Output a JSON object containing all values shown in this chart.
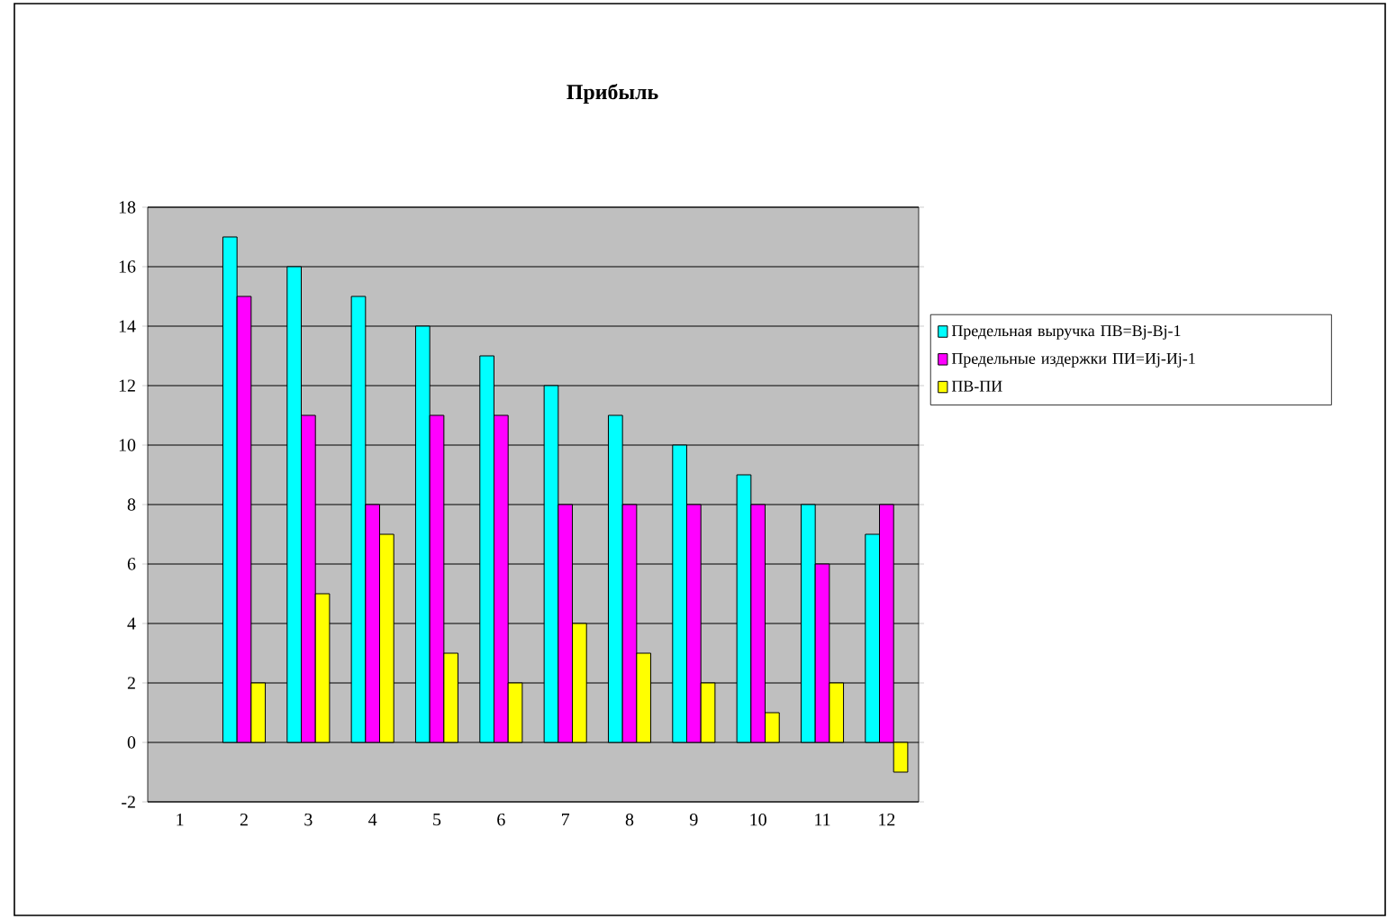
{
  "chart_data": {
    "type": "bar",
    "title": "Прибыль",
    "categories": [
      "1",
      "2",
      "3",
      "4",
      "5",
      "6",
      "7",
      "8",
      "9",
      "10",
      "11",
      "12"
    ],
    "series": [
      {
        "name": "Предельная выручка ПВ=Вj-Вj-1",
        "color": "#00ffff",
        "values": [
          null,
          17,
          16,
          15,
          14,
          13,
          12,
          11,
          10,
          9,
          8,
          7
        ]
      },
      {
        "name": "Предельные издержки ПИ=Иj-Иj-1",
        "color": "#ff00ff",
        "values": [
          null,
          15,
          11,
          8,
          11,
          11,
          8,
          8,
          8,
          8,
          6,
          8
        ]
      },
      {
        "name": "ПВ-ПИ",
        "color": "#ffff00",
        "values": [
          null,
          2,
          5,
          7,
          3,
          2,
          4,
          3,
          2,
          1,
          2,
          -1
        ]
      }
    ],
    "ylim": [
      -2,
      18
    ],
    "yticks": [
      -2,
      0,
      2,
      4,
      6,
      8,
      10,
      12,
      14,
      16,
      18
    ],
    "grid": "y",
    "legend": "right"
  }
}
